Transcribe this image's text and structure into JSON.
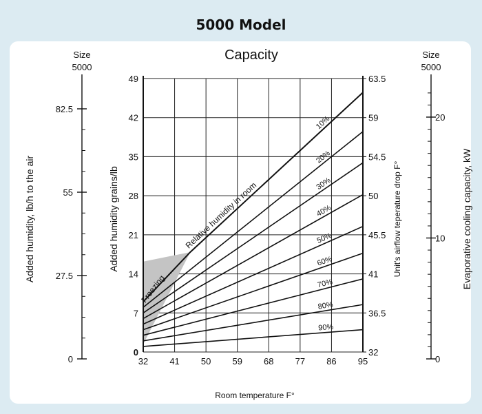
{
  "page": {
    "model_title": "5000 Model"
  },
  "chart_data": {
    "type": "line",
    "title": "Capacity",
    "xlabel": "Room temperature F°",
    "ylabel": "Added humidity grains/lb",
    "x_ticks": [
      32,
      41,
      50,
      59,
      68,
      77,
      86,
      95
    ],
    "xlim": [
      32,
      95
    ],
    "y_ticks": [
      0,
      7,
      14,
      21,
      28,
      35,
      42,
      49
    ],
    "ylim": [
      0,
      49
    ],
    "right_axis": {
      "label": "Unit's airflow teperature drop F°",
      "ticks": [
        "32",
        "36.5",
        "41",
        "45.5",
        "50",
        "54.5",
        "59",
        "63.5"
      ]
    },
    "left_scale": {
      "header": [
        "Size",
        "5000"
      ],
      "label": "Added humidity, lb/h to the air",
      "ticks": [
        "0",
        "27.5",
        "55",
        "82.5"
      ]
    },
    "right_scale": {
      "header": [
        "Size",
        "5000"
      ],
      "label": "Evaporative cooling capacity, kW",
      "ticks": [
        "0",
        "10",
        "20"
      ]
    },
    "annotations": {
      "rh_label": "Relative humidity in room",
      "freezing_label": "Freezing"
    },
    "series": [
      {
        "label": "10%",
        "x": [
          32,
          45.5,
          95
        ],
        "y": [
          9,
          17.9,
          46.5
        ]
      },
      {
        "label": "20%",
        "x": [
          32,
          95
        ],
        "y": [
          8,
          39.5
        ]
      },
      {
        "label": "30%",
        "x": [
          32,
          95
        ],
        "y": [
          7,
          33.9
        ]
      },
      {
        "label": "40%",
        "x": [
          32,
          95
        ],
        "y": [
          6,
          28.2
        ]
      },
      {
        "label": "50%",
        "x": [
          32,
          95
        ],
        "y": [
          5,
          22.5
        ]
      },
      {
        "label": "60%",
        "x": [
          32,
          95
        ],
        "y": [
          4,
          17.7
        ]
      },
      {
        "label": "70%",
        "x": [
          32,
          95
        ],
        "y": [
          3,
          13.1
        ]
      },
      {
        "label": "80%",
        "x": [
          32,
          95
        ],
        "y": [
          2,
          8.5
        ]
      },
      {
        "label": "90%",
        "x": [
          32,
          95
        ],
        "y": [
          1,
          4
        ]
      }
    ]
  }
}
